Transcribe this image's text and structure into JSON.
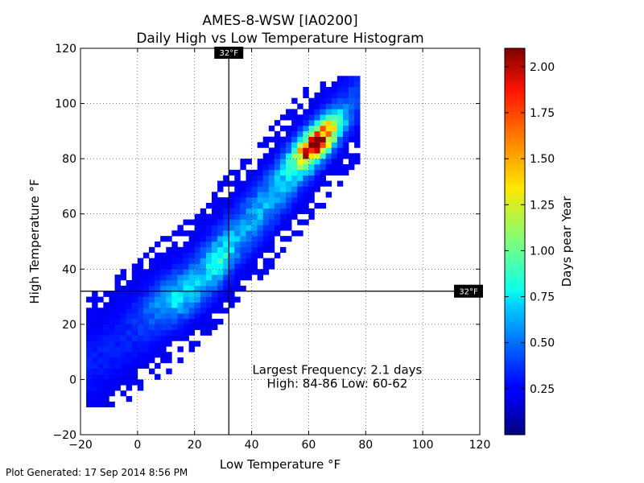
{
  "chart_data": {
    "type": "heatmap",
    "title": "AMES-8-WSW [IA0200]",
    "subtitle": "Daily High vs Low Temperature Histogram",
    "xlabel": "Low Temperature °F",
    "ylabel": "High Temperature °F",
    "xlim": [
      -20,
      120
    ],
    "ylim": [
      -20,
      120
    ],
    "xticks": [
      "−20",
      "0",
      "20",
      "40",
      "60",
      "80",
      "100",
      "120"
    ],
    "yticks": [
      "−20",
      "0",
      "20",
      "40",
      "60",
      "80",
      "100",
      "120"
    ],
    "grid": true,
    "bin_size": 2,
    "reference_lines": [
      {
        "axis": "x",
        "value": 32,
        "label": "32°F"
      },
      {
        "axis": "y",
        "value": 32,
        "label": "32°F"
      }
    ],
    "annotation": {
      "line1": "Largest Frequency: 2.1 days",
      "line2": "High: 84-86 Low: 60-62",
      "x": 70,
      "y": 0
    },
    "colorbar": {
      "label": "Days pear Year",
      "min": 0,
      "max": 2.1,
      "ticks": [
        "0.25",
        "0.50",
        "0.75",
        "1.00",
        "1.25",
        "1.50",
        "1.75",
        "2.00"
      ],
      "tick_values": [
        0.25,
        0.5,
        0.75,
        1.0,
        1.25,
        1.5,
        1.75,
        2.0
      ],
      "colormap": "jet"
    },
    "density_model": {
      "ridge_points": [
        {
          "low": -18,
          "high": 4
        },
        {
          "low": 0,
          "high": 18
        },
        {
          "low": 20,
          "high": 36
        },
        {
          "low": 40,
          "high": 58
        },
        {
          "low": 60,
          "high": 82
        },
        {
          "low": 74,
          "high": 100
        }
      ],
      "peak": {
        "low": 61,
        "high": 85,
        "value": 2.1
      }
    }
  },
  "footer": {
    "generated": "Plot Generated: 17 Sep 2014 8:56 PM"
  }
}
